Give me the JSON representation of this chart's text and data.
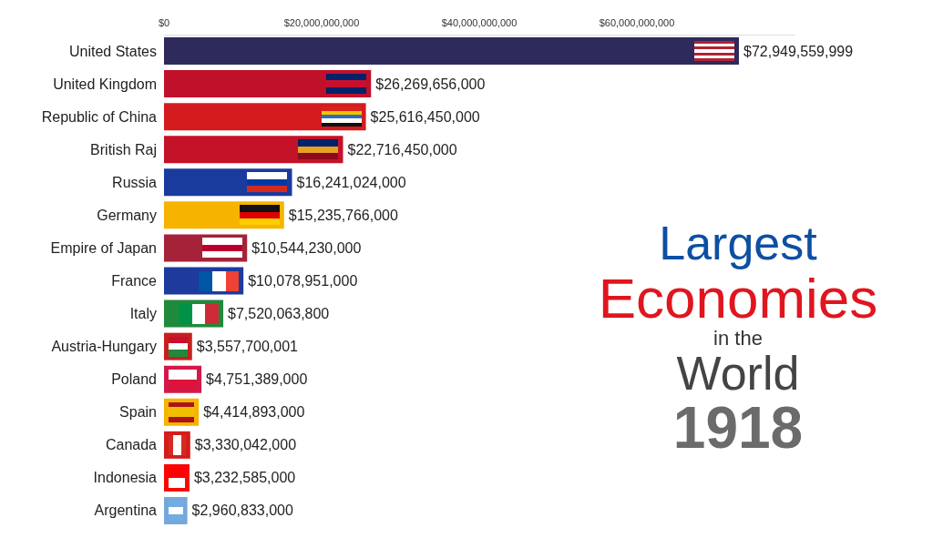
{
  "chart_data": {
    "type": "bar",
    "orientation": "horizontal",
    "title": "Largest Economies in the World",
    "subtitle": "1918",
    "categories": [
      "United States",
      "United Kingdom",
      "Republic of China",
      "British Raj",
      "Russia",
      "Germany",
      "Empire of Japan",
      "France",
      "Italy",
      "Austria-Hungary",
      "Poland",
      "Spain",
      "Canada",
      "Indonesia",
      "Argentina"
    ],
    "values": [
      72949559999,
      26269656000,
      25616450000,
      22716450000,
      16241024000,
      15235766000,
      10544230000,
      10078951000,
      7520063800,
      3557700001,
      4751389000,
      4414893000,
      3330042000,
      3232585000,
      2960833000
    ],
    "value_labels": [
      "$72,949,559,999",
      "$26,269,656,000",
      "$25,616,450,000",
      "$22,716,450,000",
      "$16,241,024,000",
      "$15,235,766,000",
      "$10,544,230,000",
      "$10,078,951,000",
      "$7,520,063,800",
      "$3,557,700,001",
      "$4,751,389,000",
      "$4,414,893,000",
      "$3,330,042,000",
      "$3,232,585,000",
      "$2,960,833,000"
    ],
    "colors": [
      "#2f2a5c",
      "#c0102a",
      "#d41c1f",
      "#c41228",
      "#1a3b9e",
      "#f6b400",
      "#a52238",
      "#1d3a9c",
      "#21893c",
      "#c6201d",
      "#d3194a",
      "#f6b400",
      "#d41c1c",
      "#fb0505",
      "#74a8dc"
    ],
    "xlim": [
      0,
      80000000000
    ],
    "xticks": [
      {
        "value": 0,
        "label": "$0"
      },
      {
        "value": 20000000000,
        "label": "$20,000,000,000"
      },
      {
        "value": 40000000000,
        "label": "$40,000,000,000"
      },
      {
        "value": 60000000000,
        "label": "$60,000,000,000"
      }
    ],
    "grid": false
  }
}
